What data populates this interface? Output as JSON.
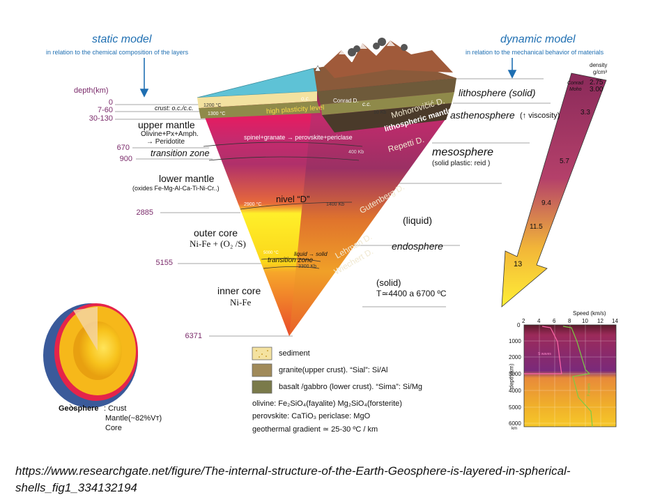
{
  "static_model": {
    "title": "static model",
    "subtitle": "in relation to the chemical composition of the layers"
  },
  "dynamic_model": {
    "title": "dynamic model",
    "subtitle": "in relation to the mechanical behavior of materials"
  },
  "depth_label": "depth(km)",
  "depths": {
    "d0": "0",
    "d1": "7-60",
    "d2": "30-130",
    "d3": "670",
    "d4": "900",
    "d5": "2885",
    "d6": "5155",
    "d7": "6371"
  },
  "static_layers": {
    "crust": "crust: o.c./c.c.",
    "upper_mantle": "upper mantle",
    "upper_mantle_comp": "Olivine+Px+Amph.",
    "upper_mantle_arrow": "→ Peridotite",
    "transition_zone": "transition zone",
    "lower_mantle": "lower mantle",
    "lower_mantle_comp": "(oxides Fe-Mg-Al-Ca-Ti-Ni-Cr..)",
    "outer_core": "outer core",
    "outer_core_comp": "Ni-Fe + (O₂ /S)",
    "inner_core": "inner core",
    "inner_core_comp": "Ni-Fe"
  },
  "block_labels": {
    "c1200": "1200 °C",
    "c1300": "1300 °C",
    "oc": "o.c.",
    "conrad": "Conrad D.",
    "cc": "c.c.",
    "kb10": "10 Kb",
    "high_plasticity": "high plasticity level",
    "spinel": "spinel+granate → perovskite+periclase",
    "kb400": "400 Kb",
    "nivel_d": "nivel “D”",
    "c2900": "2900 °C",
    "kb1400": "1400 Kb",
    "liquid_solid": "liquid → solid",
    "transition_zone2": "transition zone",
    "c5000": "5000 °C",
    "kb3300": "3300 Kb",
    "moho_d": "Mohorovičić D.",
    "lithospheric_mantle": "lithospheric mantle",
    "repetti": "Repetti D.",
    "gutenberg": "Gutenberg D.",
    "lehman": "Lehman D.",
    "wiechert": "Wiechert D."
  },
  "dynamic_layers": {
    "lithosphere": "lithosphere (solid)",
    "asthenosphere": "asthenosphere",
    "asthenosphere_note": "(↑ viscosity)",
    "mesosphere": "mesosphere",
    "mesosphere_note": "(solid plastic: reid )",
    "liquid": "(liquid)",
    "endosphere": "endosphere",
    "solid": "(solid)",
    "temperature": "T≃4400 a 6700 ºC"
  },
  "density": {
    "header1": "density",
    "header2": "g/cm³",
    "conrad": "Conrad",
    "moho": "Moho",
    "values": [
      "2.75",
      "3.00",
      "3.3",
      "5.7",
      "9.4",
      "11.5",
      "13"
    ]
  },
  "speed_chart": {
    "title": "Speed (km/s)",
    "x_ticks": [
      "2",
      "4",
      "6",
      "8",
      "10",
      "12",
      "14"
    ],
    "y_label": "depth(km)",
    "y_ticks": [
      "0",
      "1000",
      "2000",
      "3000",
      "4000",
      "5000",
      "6000"
    ],
    "y_unit": "km",
    "s_wave_label": "S waves",
    "p_wave_label": "P waves"
  },
  "legend": {
    "sediment": "sediment",
    "granite": "granite(upper crust). “Sial”: Si/Al",
    "basalt": "basalt /gabbro (lower crust). “Sima”: Si/Mg",
    "olivine": "olivine: Fe₂SiO₄(fayalite)    Mg₂SiO₄(forsterite)",
    "perovskite": "perovskite: CaTiO₃   periclase:  MgO",
    "gradient": "geothermal gradient ≃ 25-30 ºC / km"
  },
  "geosphere": {
    "title": "Geosphere",
    "crust": ": Crust",
    "mantle": "Mantle(~82%Vт)",
    "core": "Core"
  },
  "source_url": "https://www.researchgate.net/figure/The-internal-structure-of-the-Earth-Geosphere-is-layered-in-spherical-shells_fig1_334132194",
  "colors": {
    "blue_accent": "#1f6fb2",
    "depth_purple": "#7a2a6a"
  }
}
